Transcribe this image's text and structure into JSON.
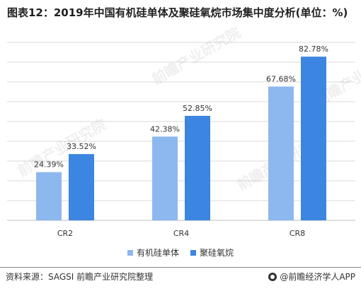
{
  "title": "图表12：2019年中国有机硅单体及聚硅氧烷市场集中度分析(单位：%)",
  "chart_data": {
    "type": "bar",
    "categories": [
      "CR2",
      "CR4",
      "CR8"
    ],
    "series": [
      {
        "name": "有机硅单体",
        "values": [
          24.39,
          42.38,
          67.68
        ],
        "labels": [
          "24.39%",
          "42.38%",
          "67.68%"
        ]
      },
      {
        "name": "聚硅氧烷",
        "values": [
          33.52,
          52.85,
          82.78
        ],
        "labels": [
          "33.52%",
          "52.85%",
          "82.78%"
        ]
      }
    ],
    "ylim": [
      0,
      90
    ],
    "grid": true,
    "legend_position": "bottom"
  },
  "colors": {
    "series1": "#8db8ef",
    "series2": "#3c85e0",
    "grid": "#d9d9d9"
  },
  "source": "资料来源：SAGSI 前瞻产业研究院整理",
  "brand": "@前瞻经济学人APP",
  "watermark": "前瞻产业研究院",
  "icons": {
    "brand": "brand-logo-icon"
  }
}
